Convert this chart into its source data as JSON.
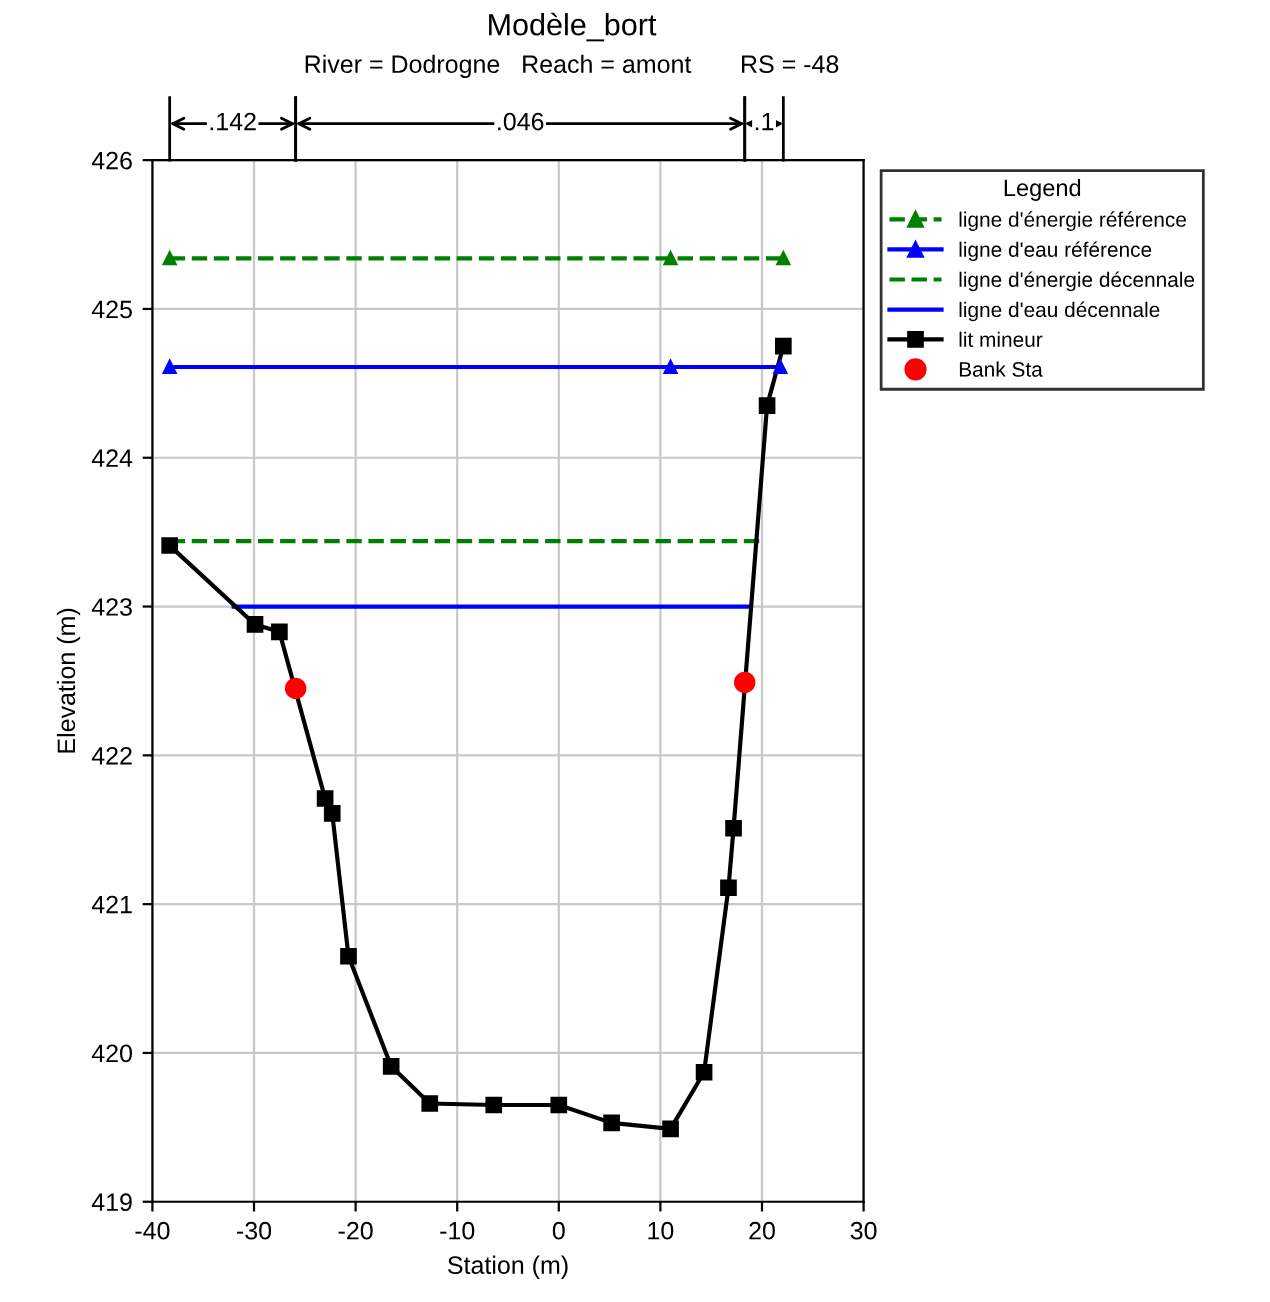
{
  "chart_data": {
    "type": "line",
    "title": "Modèle_bort",
    "subtitle": "River = Dodrogne   Reach = amont       RS = -48",
    "xlabel": "Station (m)",
    "ylabel": "Elevation (m)",
    "legend_title": "Legend",
    "xlim": [
      -40,
      30
    ],
    "xticks": [
      -40,
      -30,
      -20,
      -10,
      0,
      10,
      20,
      30
    ],
    "ylim": [
      419,
      426
    ],
    "yticks": [
      419,
      420,
      421,
      422,
      423,
      424,
      425,
      426
    ],
    "grid": true,
    "legend": "right",
    "annotations": [
      ".142",
      ".046",
      ".1"
    ],
    "series": [
      {
        "name": "ligne d'énergie référence",
        "color": "#008000",
        "line_style": "dashed",
        "marker": "triangle",
        "x": [
          -38.3,
          11.0,
          22.1
        ],
        "values": [
          425.34,
          425.34,
          425.34
        ]
      },
      {
        "name": "ligne d'eau référence",
        "color": "#0000ff",
        "line_style": "solid",
        "marker": "triangle",
        "x": [
          -38.3,
          11.0,
          21.8
        ],
        "values": [
          424.61,
          424.61,
          424.61
        ]
      },
      {
        "name": "ligne d'énergie décennale",
        "color": "#008000",
        "line_style": "dashed",
        "marker": "none",
        "x": [
          -38.3,
          20.2
        ],
        "values": [
          423.44,
          423.44
        ]
      },
      {
        "name": "ligne d'eau décennale",
        "color": "#0000ff",
        "line_style": "solid",
        "marker": "none",
        "x": [
          -32.0,
          18.7
        ],
        "values": [
          423.0,
          423.0
        ]
      },
      {
        "name": "lit mineur",
        "color": "#000000",
        "line_style": "solid",
        "marker": "square",
        "x": [
          -38.3,
          -29.9,
          -27.5,
          -23.0,
          -22.3,
          -20.7,
          -16.5,
          -12.7,
          -6.4,
          0.0,
          5.2,
          11.0,
          14.3,
          16.7,
          17.2,
          20.5,
          22.1
        ],
        "values": [
          423.41,
          422.88,
          422.83,
          421.71,
          421.61,
          420.65,
          419.91,
          419.66,
          419.65,
          419.65,
          419.53,
          419.49,
          419.87,
          421.11,
          421.51,
          424.35,
          424.75
        ]
      },
      {
        "name": "Bank Sta",
        "type": "scatter",
        "color": "#ff0000",
        "marker": "circle",
        "x": [
          -25.9,
          18.3
        ],
        "values": [
          422.45,
          422.49
        ]
      }
    ]
  }
}
